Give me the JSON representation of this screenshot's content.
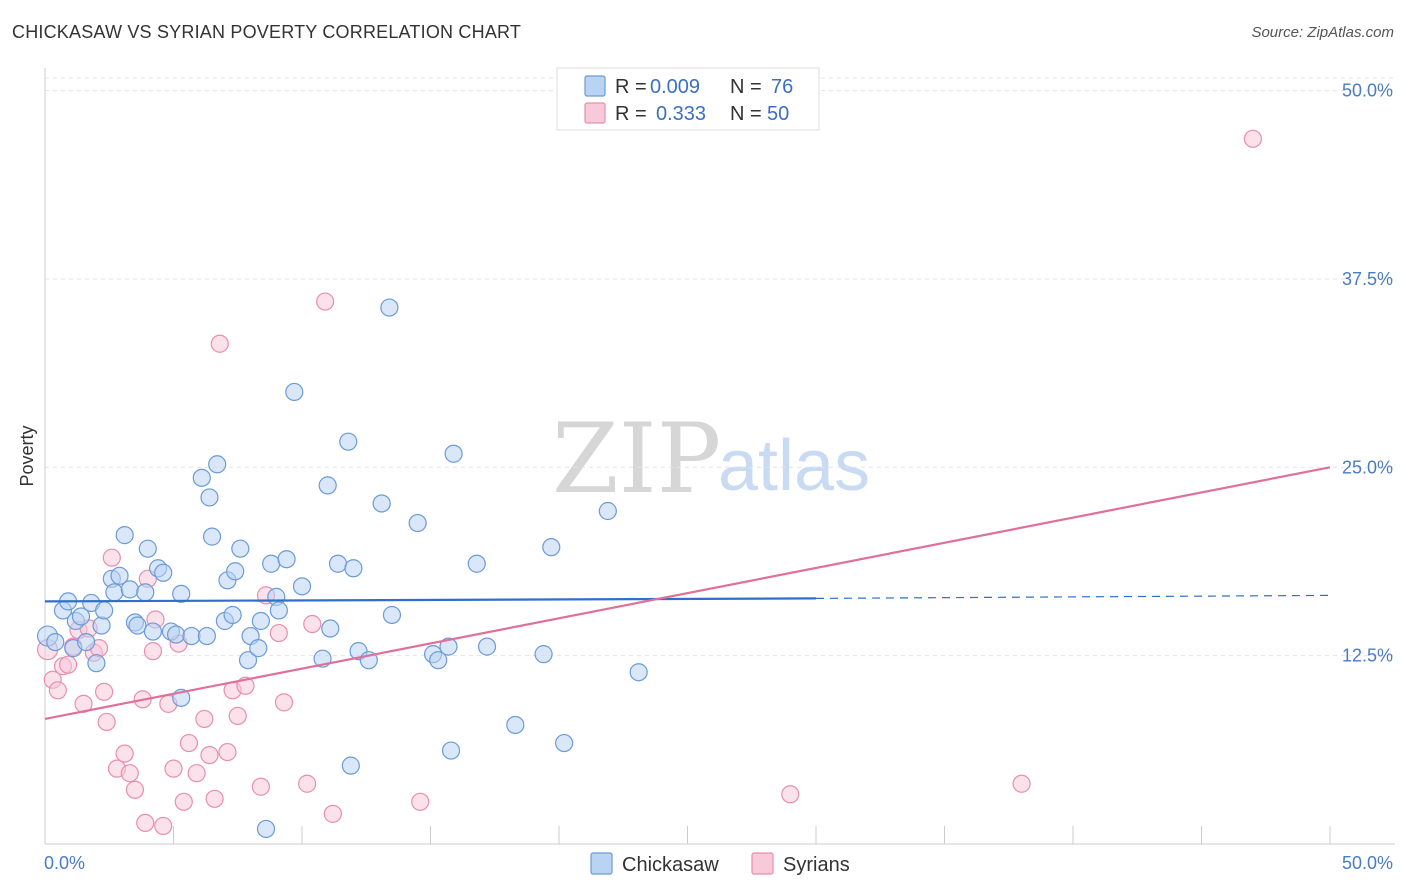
{
  "title": "CHICKASAW VS SYRIAN POVERTY CORRELATION CHART",
  "source": "Source: ZipAtlas.com",
  "watermark": {
    "zip": "ZIP",
    "atlas": "atlas"
  },
  "legend": {
    "rows": [
      {
        "r_label": "R =",
        "r_value": "0.009",
        "n_label": "N =",
        "n_value": "76"
      },
      {
        "r_label": "R =",
        "r_value": "0.333",
        "n_label": "N =",
        "n_value": "50"
      }
    ]
  },
  "colors": {
    "chickasaw_fill": "#b9d3f3",
    "chickasaw_stroke": "#6b9bd8",
    "chickasaw_line": "#2f6fc9",
    "syrians_fill": "#f8c9d8",
    "syrians_stroke": "#e88fae",
    "syrians_line": "#e0709a",
    "tick_text": "#4a7cc4"
  },
  "chart_data": {
    "type": "scatter",
    "title": "CHICKASAW VS SYRIAN POVERTY CORRELATION CHART",
    "xlabel": "",
    "ylabel": "Poverty",
    "xlim": [
      0,
      50
    ],
    "ylim": [
      0,
      51.5
    ],
    "x_ticks": [
      "0.0%",
      "50.0%"
    ],
    "y_ticks": [
      {
        "value": 12.5,
        "label": "12.5%"
      },
      {
        "value": 25.0,
        "label": "25.0%"
      },
      {
        "value": 37.5,
        "label": "37.5%"
      },
      {
        "value": 50.0,
        "label": "50.0%"
      }
    ],
    "grid": true,
    "legend_position": "top-center",
    "series": [
      {
        "name": "Chickasaw",
        "r": 0.009,
        "n": 76,
        "trend": {
          "x0": 0,
          "y0": 16.1,
          "x1": 30,
          "y1": 16.3,
          "dashed_to_x": 50,
          "dashed_to_y": 16.5
        },
        "points": [
          [
            0.1,
            13.8
          ],
          [
            0.4,
            13.4
          ],
          [
            0.7,
            15.5
          ],
          [
            0.9,
            16.1
          ],
          [
            1.1,
            13.0
          ],
          [
            1.2,
            14.8
          ],
          [
            1.4,
            15.1
          ],
          [
            1.6,
            13.4
          ],
          [
            1.8,
            16.0
          ],
          [
            2.0,
            12.0
          ],
          [
            2.2,
            14.5
          ],
          [
            2.3,
            15.5
          ],
          [
            2.6,
            17.6
          ],
          [
            2.7,
            16.7
          ],
          [
            2.9,
            17.8
          ],
          [
            3.1,
            20.5
          ],
          [
            3.3,
            16.9
          ],
          [
            3.5,
            14.7
          ],
          [
            3.6,
            14.5
          ],
          [
            3.9,
            16.7
          ],
          [
            4.0,
            19.6
          ],
          [
            4.2,
            14.1
          ],
          [
            4.4,
            18.3
          ],
          [
            4.6,
            18.0
          ],
          [
            4.9,
            14.1
          ],
          [
            5.1,
            13.9
          ],
          [
            5.3,
            9.7
          ],
          [
            5.3,
            16.6
          ],
          [
            5.7,
            13.8
          ],
          [
            6.1,
            24.3
          ],
          [
            6.3,
            13.8
          ],
          [
            6.4,
            23.0
          ],
          [
            6.5,
            20.4
          ],
          [
            6.7,
            25.2
          ],
          [
            7.0,
            14.8
          ],
          [
            7.1,
            17.5
          ],
          [
            7.3,
            15.2
          ],
          [
            7.4,
            18.1
          ],
          [
            7.6,
            19.6
          ],
          [
            7.9,
            12.2
          ],
          [
            8.0,
            13.8
          ],
          [
            8.3,
            13.0
          ],
          [
            8.4,
            14.8
          ],
          [
            8.6,
            1.0
          ],
          [
            8.8,
            18.6
          ],
          [
            9.0,
            16.4
          ],
          [
            9.1,
            15.5
          ],
          [
            9.4,
            18.9
          ],
          [
            9.7,
            30.0
          ],
          [
            10.0,
            17.1
          ],
          [
            10.8,
            12.3
          ],
          [
            11.0,
            23.8
          ],
          [
            11.1,
            14.3
          ],
          [
            11.4,
            18.6
          ],
          [
            11.8,
            26.7
          ],
          [
            11.9,
            5.2
          ],
          [
            12.0,
            18.3
          ],
          [
            12.2,
            12.8
          ],
          [
            12.6,
            12.2
          ],
          [
            13.1,
            22.6
          ],
          [
            13.4,
            35.6
          ],
          [
            13.5,
            15.2
          ],
          [
            14.5,
            21.3
          ],
          [
            15.1,
            12.6
          ],
          [
            15.3,
            12.2
          ],
          [
            15.7,
            13.1
          ],
          [
            15.8,
            6.2
          ],
          [
            15.9,
            25.9
          ],
          [
            16.8,
            18.6
          ],
          [
            17.2,
            13.1
          ],
          [
            18.3,
            7.9
          ],
          [
            19.4,
            12.6
          ],
          [
            19.7,
            19.7
          ],
          [
            20.2,
            6.7
          ],
          [
            21.9,
            22.1
          ],
          [
            23.1,
            11.4
          ]
        ]
      },
      {
        "name": "Syrians",
        "r": 0.333,
        "n": 50,
        "trend": {
          "x0": 0,
          "y0": 8.3,
          "x1": 50,
          "y1": 25.0
        },
        "points": [
          [
            0.1,
            12.9
          ],
          [
            0.3,
            10.9
          ],
          [
            0.5,
            10.2
          ],
          [
            0.7,
            11.8
          ],
          [
            0.9,
            11.9
          ],
          [
            1.1,
            13.1
          ],
          [
            1.3,
            14.2
          ],
          [
            1.5,
            9.3
          ],
          [
            1.7,
            14.3
          ],
          [
            1.9,
            12.7
          ],
          [
            2.1,
            13.0
          ],
          [
            2.3,
            10.1
          ],
          [
            2.4,
            8.1
          ],
          [
            2.6,
            19.0
          ],
          [
            2.8,
            5.0
          ],
          [
            3.1,
            6.0
          ],
          [
            3.3,
            4.7
          ],
          [
            3.5,
            3.6
          ],
          [
            3.8,
            9.6
          ],
          [
            3.9,
            1.4
          ],
          [
            4.0,
            17.6
          ],
          [
            4.2,
            12.8
          ],
          [
            4.3,
            14.9
          ],
          [
            4.6,
            1.2
          ],
          [
            4.8,
            9.3
          ],
          [
            5.0,
            5.0
          ],
          [
            5.2,
            13.3
          ],
          [
            5.4,
            2.8
          ],
          [
            5.6,
            6.7
          ],
          [
            5.9,
            4.7
          ],
          [
            6.2,
            8.3
          ],
          [
            6.4,
            5.9
          ],
          [
            6.6,
            3.0
          ],
          [
            6.8,
            33.2
          ],
          [
            7.1,
            6.1
          ],
          [
            7.3,
            10.2
          ],
          [
            7.5,
            8.5
          ],
          [
            7.8,
            10.5
          ],
          [
            8.4,
            3.8
          ],
          [
            8.6,
            16.5
          ],
          [
            9.1,
            14.0
          ],
          [
            9.3,
            9.4
          ],
          [
            10.2,
            4.0
          ],
          [
            10.4,
            14.6
          ],
          [
            10.9,
            36.0
          ],
          [
            11.2,
            2.0
          ],
          [
            14.6,
            2.8
          ],
          [
            29.0,
            3.3
          ],
          [
            38.0,
            4.0
          ],
          [
            47.0,
            46.8
          ]
        ]
      }
    ]
  }
}
